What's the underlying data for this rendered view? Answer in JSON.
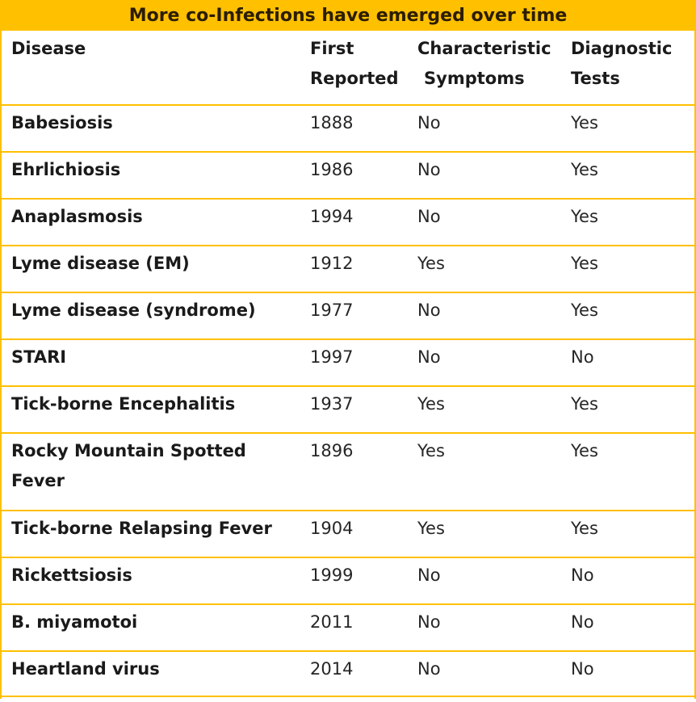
{
  "title": "More co-Infections have emerged over time",
  "headers": {
    "disease": [
      "Disease"
    ],
    "first_reported": [
      "First",
      "Reported"
    ],
    "symptoms": [
      "Characteristic",
      "Symptoms"
    ],
    "tests": [
      "Diagnostic",
      "Tests"
    ]
  },
  "rows": [
    {
      "disease": [
        "Babesiosis"
      ],
      "year": "1888",
      "symptoms": "No",
      "tests": "Yes"
    },
    {
      "disease": [
        "Ehrlichiosis"
      ],
      "year": "1986",
      "symptoms": "No",
      "tests": "Yes"
    },
    {
      "disease": [
        "Anaplasmosis"
      ],
      "year": "1994",
      "symptoms": "No",
      "tests": "Yes"
    },
    {
      "disease": [
        "Lyme disease (EM)"
      ],
      "year": "1912",
      "symptoms": "Yes",
      "tests": "Yes"
    },
    {
      "disease": [
        "Lyme disease (syndrome)"
      ],
      "year": "1977",
      "symptoms": "No",
      "tests": "Yes"
    },
    {
      "disease": [
        "STARI"
      ],
      "year": "1997",
      "symptoms": "No",
      "tests": "No"
    },
    {
      "disease": [
        "Tick-borne Encephalitis"
      ],
      "year": "1937",
      "symptoms": "Yes",
      "tests": "Yes"
    },
    {
      "disease": [
        "Rocky Mountain Spotted",
        "Fever"
      ],
      "year": "1896",
      "symptoms": "Yes",
      "tests": "Yes"
    },
    {
      "disease": [
        "Tick-borne Relapsing Fever"
      ],
      "year": "1904",
      "symptoms": "Yes",
      "tests": "Yes"
    },
    {
      "disease": [
        "Rickettsiosis"
      ],
      "year": "1999",
      "symptoms": "No",
      "tests": "No"
    },
    {
      "disease": [
        "B. miyamotoi"
      ],
      "year": "2011",
      "symptoms": "No",
      "tests": "No"
    },
    {
      "disease": [
        "Heartland virus"
      ],
      "year": "2014",
      "symptoms": "No",
      "tests": "No"
    }
  ],
  "colors": {
    "accent": "#ffc000",
    "text": "#1a1a1a"
  }
}
